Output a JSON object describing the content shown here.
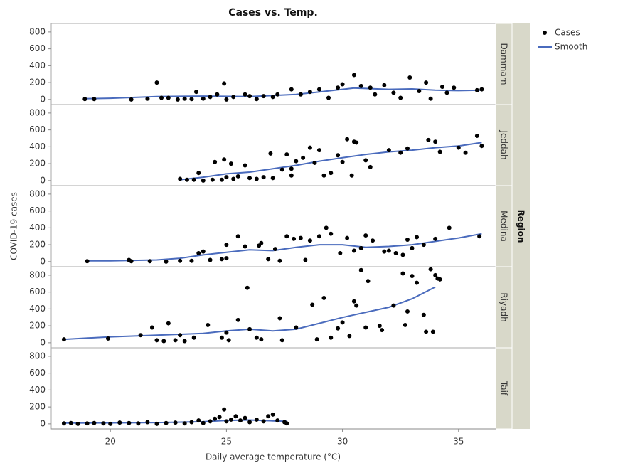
{
  "chart_data": {
    "type": "scatter",
    "title": "Cases vs. Temp.",
    "x_label": "Daily average temperature (°C)",
    "y_label": "COVID-19 cases",
    "facet_title": "Region",
    "xlim": [
      17.45,
      36.6
    ],
    "xticks": [
      20,
      25,
      30,
      35
    ],
    "ylim": [
      -60,
      900
    ],
    "yticks": [
      0,
      200,
      400,
      600,
      800
    ],
    "series": [
      {
        "name": "Cases",
        "color": "#000000"
      },
      {
        "name": "Smooth",
        "color": "#4a6bbd"
      }
    ],
    "panels": [
      {
        "name": "Dammam",
        "x": [
          18.9,
          19.3,
          20.9,
          21.6,
          22,
          22.2,
          22.5,
          22.9,
          23.2,
          23.5,
          23.7,
          24,
          24.3,
          24.6,
          24.9,
          25,
          25.3,
          25.8,
          26,
          26.3,
          26.6,
          27,
          27.2,
          27.8,
          28.2,
          28.6,
          29,
          29.4,
          29.8,
          30,
          30.5,
          30.8,
          31.2,
          31.4,
          31.8,
          32.2,
          32.5,
          32.9,
          33.3,
          33.6,
          33.8,
          34.3,
          34.5,
          34.8,
          35.8,
          36
        ],
        "y": [
          5,
          5,
          0,
          10,
          200,
          20,
          20,
          0,
          10,
          5,
          90,
          10,
          30,
          60,
          190,
          0,
          30,
          60,
          40,
          5,
          40,
          30,
          60,
          120,
          60,
          90,
          120,
          20,
          140,
          180,
          290,
          160,
          140,
          60,
          170,
          80,
          20,
          260,
          100,
          200,
          10,
          150,
          80,
          140,
          110,
          120
        ],
        "smooth_x": [
          18.9,
          20,
          22,
          24,
          26,
          28,
          29,
          30,
          30.5,
          31,
          32,
          33,
          34,
          35,
          36
        ],
        "smooth_y": [
          10,
          15,
          35,
          40,
          35,
          60,
          90,
          120,
          135,
          130,
          120,
          125,
          110,
          105,
          110
        ]
      },
      {
        "name": "Jeddah",
        "x": [
          23,
          23.3,
          23.6,
          23.8,
          24,
          24.4,
          24.5,
          24.8,
          24.9,
          25,
          25.2,
          25.3,
          25.5,
          25.8,
          26,
          26.3,
          26.6,
          26.9,
          27,
          27.4,
          27.6,
          27.8,
          27.8,
          28,
          28.3,
          28.6,
          28.8,
          29,
          29.2,
          29.5,
          29.8,
          30,
          30.2,
          30.4,
          30.5,
          30.6,
          31,
          31.2,
          32,
          32.5,
          32.8,
          33.7,
          34,
          34.2,
          35,
          35.3,
          35.8,
          36
        ],
        "y": [
          20,
          10,
          10,
          90,
          0,
          10,
          220,
          10,
          250,
          40,
          200,
          20,
          50,
          180,
          30,
          20,
          40,
          320,
          30,
          130,
          310,
          140,
          60,
          230,
          270,
          390,
          210,
          360,
          60,
          90,
          300,
          220,
          490,
          60,
          460,
          450,
          240,
          160,
          360,
          330,
          380,
          480,
          460,
          340,
          390,
          330,
          530,
          410
        ],
        "smooth_x": [
          23,
          24,
          25,
          26,
          27,
          28,
          29,
          30,
          31,
          32,
          33,
          34,
          35,
          36
        ],
        "smooth_y": [
          10,
          40,
          80,
          100,
          140,
          180,
          230,
          270,
          310,
          340,
          360,
          390,
          410,
          450
        ]
      },
      {
        "name": "Medina",
        "x": [
          19,
          20.8,
          20.9,
          21.7,
          22.4,
          23,
          23.5,
          23.8,
          24,
          24.3,
          24.8,
          25,
          25,
          25.5,
          25.8,
          26.4,
          26.5,
          26.8,
          27.1,
          27.3,
          27.6,
          27.9,
          28.2,
          28.4,
          28.6,
          29,
          29.3,
          29.5,
          29.9,
          30.2,
          30.5,
          30.8,
          31,
          31.3,
          31.8,
          32,
          32.3,
          32.6,
          32.8,
          33,
          33.2,
          33.5,
          34,
          34.6,
          35.9
        ],
        "y": [
          5,
          20,
          5,
          5,
          0,
          10,
          10,
          100,
          120,
          20,
          30,
          200,
          40,
          300,
          180,
          190,
          220,
          30,
          150,
          10,
          300,
          270,
          280,
          20,
          250,
          300,
          400,
          330,
          100,
          280,
          130,
          160,
          310,
          250,
          120,
          130,
          100,
          80,
          260,
          160,
          290,
          200,
          270,
          400,
          300
        ],
        "smooth_x": [
          19,
          20,
          21,
          22,
          23,
          24,
          25,
          26,
          27,
          28,
          29,
          30,
          31,
          32,
          33,
          34,
          35,
          36
        ],
        "smooth_y": [
          10,
          10,
          15,
          20,
          40,
          80,
          110,
          140,
          130,
          170,
          200,
          200,
          170,
          180,
          200,
          240,
          280,
          330
        ]
      },
      {
        "name": "Riyadh",
        "x": [
          18,
          19.9,
          21.3,
          21.8,
          22,
          22.3,
          22.5,
          22.8,
          23,
          23.2,
          23.6,
          24.2,
          24.8,
          25,
          25.1,
          25.5,
          25.9,
          26,
          26.3,
          26.5,
          27.3,
          27.4,
          28,
          28.7,
          28.9,
          29.2,
          29.5,
          29.8,
          30,
          30.3,
          30.5,
          30.6,
          30.8,
          31,
          31.1,
          31.6,
          31.7,
          32.2,
          32.6,
          32.8,
          33,
          33.2,
          33.5,
          33.6,
          33.8,
          34,
          34.1,
          34.2,
          32.7,
          33.9
        ],
        "y": [
          40,
          50,
          90,
          180,
          30,
          20,
          230,
          30,
          90,
          20,
          60,
          210,
          60,
          120,
          30,
          270,
          650,
          160,
          60,
          40,
          290,
          30,
          180,
          450,
          40,
          530,
          60,
          170,
          240,
          80,
          490,
          440,
          860,
          180,
          730,
          200,
          150,
          440,
          820,
          370,
          790,
          710,
          330,
          130,
          870,
          800,
          760,
          750,
          210,
          130
        ],
        "smooth_x": [
          18,
          20,
          22,
          24,
          25,
          26,
          27,
          28,
          29,
          30,
          31,
          32,
          33,
          34
        ],
        "smooth_y": [
          40,
          70,
          90,
          110,
          140,
          160,
          140,
          160,
          230,
          300,
          360,
          420,
          520,
          660
        ]
      },
      {
        "name": "Taif",
        "x": [
          18,
          18.3,
          18.6,
          19,
          19.3,
          19.7,
          20,
          20.4,
          20.8,
          21.2,
          21.6,
          22,
          22.4,
          22.8,
          23.2,
          23.5,
          23.8,
          24,
          24.3,
          24.5,
          24.7,
          24.9,
          25,
          25.2,
          25.4,
          25.6,
          25.8,
          26,
          26.3,
          26.6,
          26.8,
          27,
          27.2,
          27.5,
          27.6
        ],
        "y": [
          5,
          10,
          0,
          5,
          10,
          5,
          0,
          15,
          10,
          5,
          20,
          0,
          10,
          15,
          5,
          20,
          40,
          10,
          30,
          60,
          80,
          170,
          30,
          50,
          90,
          40,
          70,
          20,
          50,
          30,
          90,
          110,
          40,
          20,
          5
        ],
        "smooth_x": [
          18,
          20,
          22,
          24,
          25,
          26,
          27,
          27.6
        ],
        "smooth_y": [
          10,
          12,
          15,
          25,
          40,
          45,
          35,
          30
        ]
      }
    ]
  }
}
